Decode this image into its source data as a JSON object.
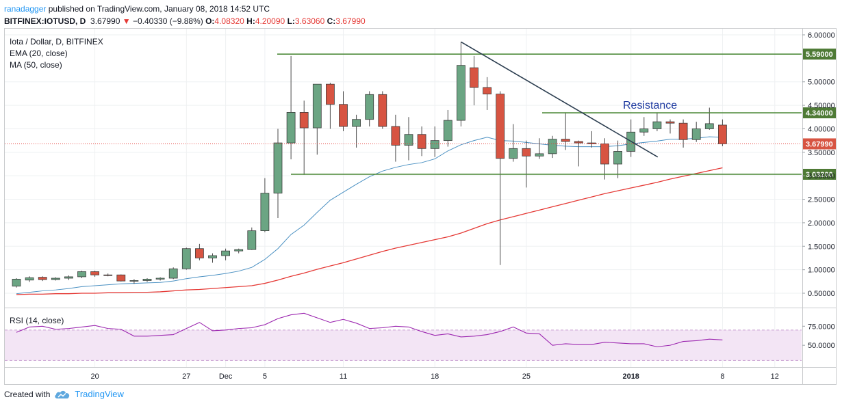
{
  "header": {
    "publisher": "ranadagger",
    "published_text": " published on TradingView.com, January 08, 2018 14:52 UTC",
    "symbol": "BITFINEX:IOTUSD, D",
    "last": "3.67990",
    "change_icon": "down-triangle-icon",
    "change": "−0.40330 (−9.88%)",
    "o_label": "O:",
    "o": "4.08320",
    "h_label": "H:",
    "h": "4.20090",
    "l_label": "L:",
    "l": "3.63060",
    "c_label": "C:",
    "c": "3.67990"
  },
  "legend": {
    "title": "Iota / Dollar, D, BITFINEX",
    "ema": "EMA (20, close)",
    "ma": "MA (50, close)",
    "rsi": "RSI (14, close)"
  },
  "annotation": {
    "resistance": "Resistance"
  },
  "footer": {
    "created_with": "Created with",
    "brand": "TradingView",
    "brand_icon": "tradingview-cloud-icon"
  },
  "colors": {
    "up": "#6ba583",
    "down": "#d75442",
    "ema": "#4a90c2",
    "ma": "#e53935",
    "level": "#4e8a3a",
    "trend": "#2c3e50",
    "rsi": "#9c27b0",
    "rsi_band": "#f3e5f5"
  },
  "chart_data": [
    {
      "type": "candlestick",
      "title": "Iota / Dollar, D, BITFINEX",
      "x_ticks": [
        "20",
        "27",
        "Dec",
        "5",
        "11",
        "18",
        "25",
        "2018",
        "8",
        "12"
      ],
      "y_ticks": [
        "0.50000",
        "1.00000",
        "1.50000",
        "2.00000",
        "2.50000",
        "3.00000",
        "3.50000",
        "4.00000",
        "4.50000",
        "5.00000",
        "6.00000"
      ],
      "ylim": [
        0.1,
        6.0
      ],
      "ohlc": [
        [
          0.65,
          0.82,
          0.62,
          0.8
        ],
        [
          0.78,
          0.86,
          0.74,
          0.83
        ],
        [
          0.84,
          0.86,
          0.76,
          0.79
        ],
        [
          0.79,
          0.84,
          0.77,
          0.82
        ],
        [
          0.82,
          0.88,
          0.78,
          0.85
        ],
        [
          0.85,
          0.98,
          0.82,
          0.96
        ],
        [
          0.96,
          0.98,
          0.85,
          0.89
        ],
        [
          0.89,
          0.92,
          0.86,
          0.88
        ],
        [
          0.89,
          0.9,
          0.75,
          0.76
        ],
        [
          0.76,
          0.8,
          0.7,
          0.77
        ],
        [
          0.77,
          0.82,
          0.74,
          0.8
        ],
        [
          0.8,
          0.84,
          0.77,
          0.82
        ],
        [
          0.82,
          1.05,
          0.8,
          1.02
        ],
        [
          1.02,
          1.47,
          1.0,
          1.45
        ],
        [
          1.45,
          1.55,
          1.2,
          1.25
        ],
        [
          1.25,
          1.35,
          1.15,
          1.3
        ],
        [
          1.3,
          1.45,
          1.2,
          1.4
        ],
        [
          1.4,
          1.45,
          1.35,
          1.43
        ],
        [
          1.43,
          1.9,
          1.42,
          1.83
        ],
        [
          1.83,
          2.95,
          1.8,
          2.63
        ],
        [
          2.63,
          4.0,
          2.1,
          3.7
        ],
        [
          3.7,
          5.55,
          3.35,
          4.35
        ],
        [
          4.35,
          4.6,
          3.02,
          4.02
        ],
        [
          4.02,
          4.95,
          3.45,
          4.95
        ],
        [
          4.95,
          4.98,
          4.0,
          4.52
        ],
        [
          4.52,
          4.8,
          3.95,
          4.05
        ],
        [
          4.05,
          4.3,
          3.6,
          4.2
        ],
        [
          4.2,
          4.8,
          4.05,
          4.73
        ],
        [
          4.73,
          4.8,
          4.0,
          4.05
        ],
        [
          4.05,
          4.3,
          3.3,
          3.65
        ],
        [
          3.65,
          4.25,
          3.33,
          3.88
        ],
        [
          3.88,
          4.05,
          3.42,
          3.58
        ],
        [
          3.58,
          4.05,
          3.4,
          3.75
        ],
        [
          3.75,
          4.4,
          3.62,
          4.18
        ],
        [
          4.18,
          5.85,
          4.05,
          5.35
        ],
        [
          5.3,
          5.55,
          4.5,
          4.88
        ],
        [
          4.88,
          5.1,
          4.4,
          4.74
        ],
        [
          4.74,
          4.8,
          1.1,
          3.37
        ],
        [
          3.37,
          4.1,
          3.3,
          3.58
        ],
        [
          3.58,
          3.75,
          2.75,
          3.42
        ],
        [
          3.42,
          3.8,
          3.36,
          3.47
        ],
        [
          3.47,
          3.85,
          3.38,
          3.78
        ],
        [
          3.78,
          4.35,
          3.55,
          3.73
        ],
        [
          3.73,
          3.75,
          3.2,
          3.7
        ],
        [
          3.7,
          3.95,
          3.6,
          3.68
        ],
        [
          3.68,
          3.8,
          2.92,
          3.25
        ],
        [
          3.25,
          3.75,
          2.95,
          3.52
        ],
        [
          3.52,
          4.2,
          3.4,
          3.93
        ],
        [
          3.93,
          4.25,
          3.85,
          4.0
        ],
        [
          4.0,
          4.35,
          3.95,
          4.15
        ],
        [
          4.15,
          4.2,
          3.9,
          4.12
        ],
        [
          4.12,
          4.2,
          3.6,
          3.77
        ],
        [
          3.77,
          4.15,
          3.72,
          4.0
        ],
        [
          4.0,
          4.45,
          3.98,
          4.11
        ],
        [
          4.08,
          4.2,
          3.63,
          3.68
        ]
      ],
      "ema20": [
        0.49,
        0.52,
        0.55,
        0.57,
        0.6,
        0.64,
        0.66,
        0.68,
        0.7,
        0.71,
        0.72,
        0.73,
        0.76,
        0.81,
        0.85,
        0.88,
        0.92,
        0.97,
        1.05,
        1.22,
        1.45,
        1.75,
        1.95,
        2.22,
        2.48,
        2.65,
        2.82,
        2.98,
        3.1,
        3.18,
        3.24,
        3.28,
        3.36,
        3.53,
        3.66,
        3.75,
        3.82,
        3.75,
        3.74,
        3.71,
        3.68,
        3.65,
        3.63,
        3.62,
        3.62,
        3.62,
        3.64,
        3.68,
        3.71,
        3.74,
        3.78,
        3.78,
        3.8,
        3.83,
        3.82
      ],
      "ma50": [
        0.47,
        0.48,
        0.48,
        0.49,
        0.49,
        0.5,
        0.5,
        0.51,
        0.51,
        0.52,
        0.52,
        0.53,
        0.55,
        0.57,
        0.58,
        0.6,
        0.62,
        0.64,
        0.66,
        0.71,
        0.78,
        0.86,
        0.93,
        1.01,
        1.08,
        1.15,
        1.23,
        1.31,
        1.39,
        1.46,
        1.52,
        1.58,
        1.64,
        1.7,
        1.78,
        1.88,
        1.98,
        2.06,
        2.13,
        2.2,
        2.27,
        2.34,
        2.41,
        2.48,
        2.55,
        2.62,
        2.68,
        2.74,
        2.8,
        2.86,
        2.93,
        2.99,
        3.05,
        3.11,
        3.17
      ],
      "levels": [
        {
          "value": 5.59,
          "label": "5.59000"
        },
        {
          "value": 4.34,
          "label": "4.34000"
        },
        {
          "value": 3.032,
          "label": "3.03200"
        }
      ],
      "last_price": {
        "value": 3.6799,
        "label": "3.67990"
      },
      "trendline": {
        "from": {
          "bar": 34,
          "value": 5.85
        },
        "to": {
          "bar": 48,
          "value": 3.4
        }
      },
      "grid": true
    },
    {
      "type": "line",
      "title": "RSI (14, close)",
      "y_ticks": [
        "50.0000",
        "75.0000"
      ],
      "band": [
        30,
        70
      ],
      "ylim": [
        25,
        95
      ],
      "values": [
        67,
        74,
        75,
        71,
        72,
        74,
        76,
        72,
        71,
        62,
        62,
        63,
        64,
        72,
        80,
        69,
        70,
        72,
        73,
        77,
        85,
        90,
        92,
        86,
        80,
        84,
        79,
        72,
        73,
        75,
        74,
        68,
        63,
        65,
        61,
        62,
        64,
        68,
        74,
        66,
        65,
        50,
        52,
        51,
        51,
        54,
        53,
        52,
        52,
        48,
        50,
        55,
        56,
        58,
        57
      ]
    }
  ]
}
